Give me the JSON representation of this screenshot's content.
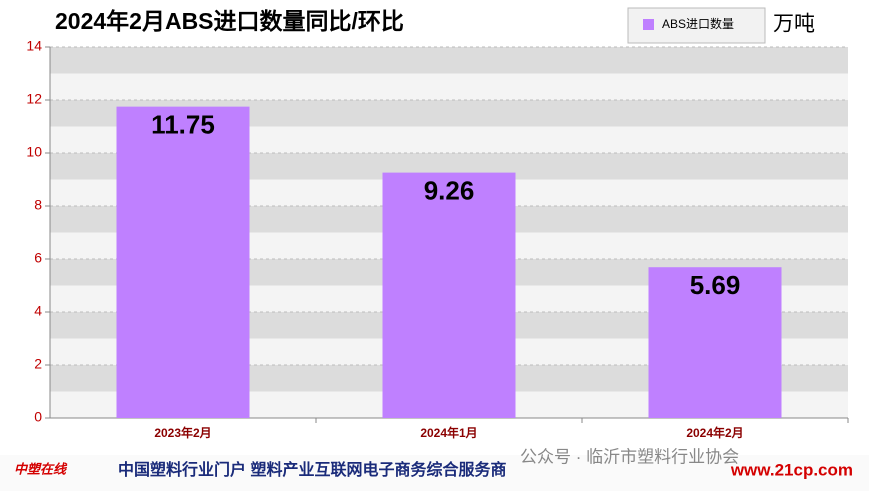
{
  "chart_data": {
    "type": "bar",
    "title": "2024年2月ABS进口数量同比/环比",
    "unit": "万吨",
    "categories": [
      "2023年2月",
      "2024年1月",
      "2024年2月"
    ],
    "series": [
      {
        "name": "ABS进口数量",
        "color": "#bf80ff",
        "values": [
          11.75,
          9.26,
          5.69
        ]
      }
    ],
    "ylim": [
      0,
      14
    ],
    "yticks": [
      0,
      2,
      4,
      6,
      8,
      10,
      12,
      14
    ],
    "grid": true,
    "legend": "top-right"
  },
  "footer": {
    "logo": "中塑在线",
    "slogan": "中国塑料行业门户 塑料产业互联网电子商务综合服务商",
    "url": "www.21cp.com",
    "watermark": "公众号 · 临沂市塑料行业协会"
  }
}
